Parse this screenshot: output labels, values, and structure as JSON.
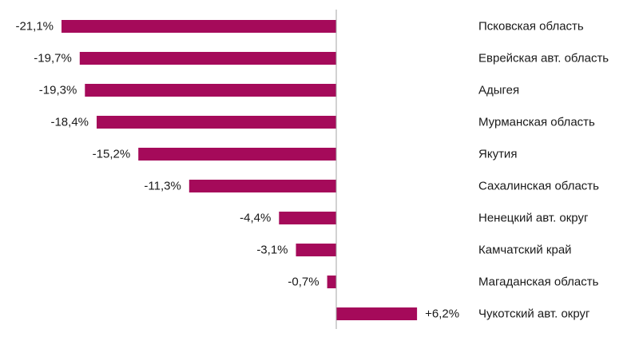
{
  "chart_data": {
    "type": "bar",
    "orientation": "horizontal",
    "title": "",
    "xlabel": "",
    "ylabel": "",
    "grid": false,
    "legend": "none",
    "value_suffix": "%",
    "color": "#a50a5a",
    "axis_color": "#a6a6a6",
    "categories": [
      "Псковская область",
      "Еврейская авт. область",
      "Адыгея",
      "Мурманская область",
      "Якутия",
      "Сахалинская область",
      "Ненецкий авт. округ",
      "Камчатский край",
      "Магаданская область",
      "Чукотский авт. округ"
    ],
    "values": [
      -21.1,
      -19.7,
      -19.3,
      -18.4,
      -15.2,
      -11.3,
      -4.4,
      -3.1,
      -0.7,
      6.2
    ],
    "data_labels": [
      "-21,1%",
      "-19,7%",
      "-19,3%",
      "-18,4%",
      "-15,2%",
      "-11,3%",
      "-4,4%",
      "-3,1%",
      "-0,7%",
      "+6,2%"
    ],
    "xlim": [
      -21.1,
      6.2
    ]
  }
}
